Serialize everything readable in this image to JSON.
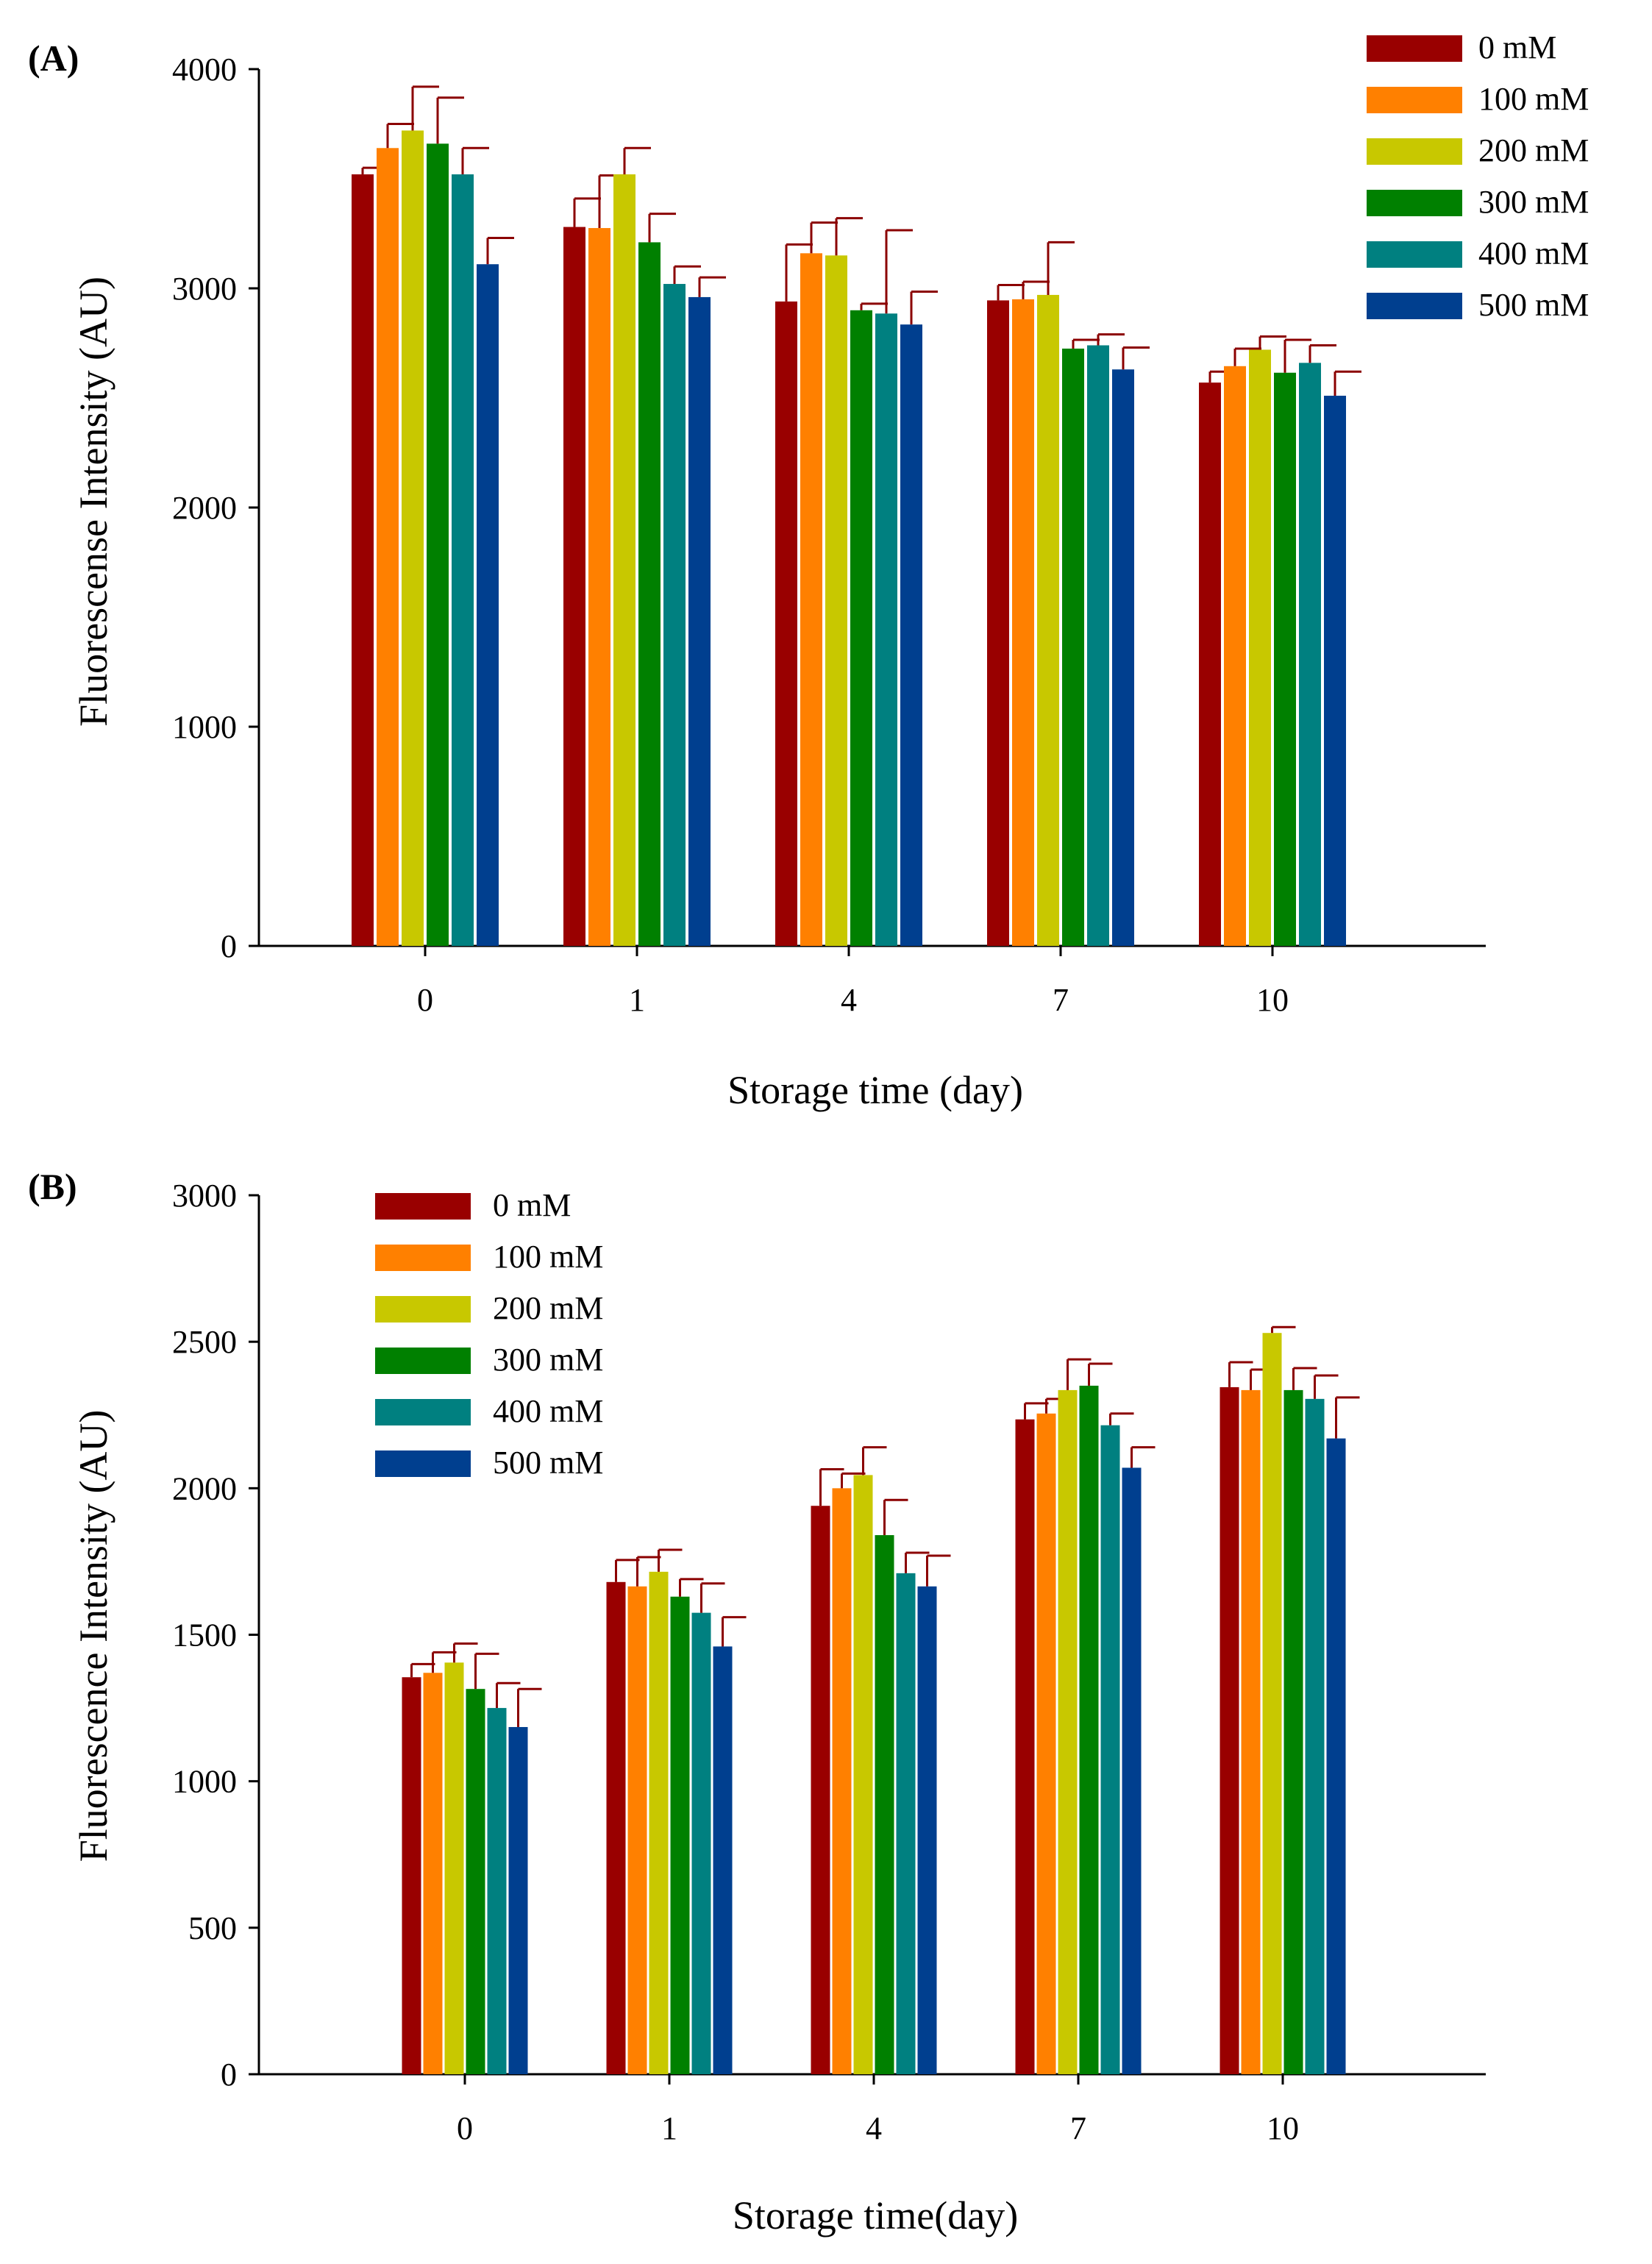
{
  "chart_data": [
    {
      "panel_label": "(A)",
      "type": "bar",
      "xlabel": "Storage time (day)",
      "ylabel": "Fluorescense Intensity (AU)",
      "ylim": [
        0,
        4000
      ],
      "yticks": [
        0,
        1000,
        2000,
        3000,
        4000
      ],
      "categories": [
        "0",
        "1",
        "4",
        "7",
        "10"
      ],
      "legend_position": "top-right",
      "series": [
        {
          "name": "0 mM",
          "color": "#990000",
          "values": [
            3520,
            3280,
            2940,
            2945,
            2570
          ],
          "errors": [
            30,
            130,
            260,
            70,
            50
          ]
        },
        {
          "name": "100 mM",
          "color": "#FF8000",
          "values": [
            3640,
            3275,
            3160,
            2950,
            2645
          ],
          "errors": [
            110,
            240,
            140,
            80,
            80
          ]
        },
        {
          "name": "200 mM",
          "color": "#C8C800",
          "values": [
            3720,
            3520,
            3150,
            2970,
            2720
          ],
          "errors": [
            200,
            120,
            170,
            240,
            60
          ]
        },
        {
          "name": "300 mM",
          "color": "#008000",
          "values": [
            3660,
            3210,
            2900,
            2725,
            2615
          ],
          "errors": [
            210,
            130,
            30,
            40,
            150
          ]
        },
        {
          "name": "400 mM",
          "color": "#008080",
          "values": [
            3520,
            3020,
            2885,
            2740,
            2660
          ],
          "errors": [
            120,
            80,
            380,
            50,
            80
          ]
        },
        {
          "name": "500 mM",
          "color": "#003F8F",
          "values": [
            3110,
            2960,
            2835,
            2630,
            2510
          ],
          "errors": [
            120,
            90,
            150,
            100,
            110
          ]
        }
      ]
    },
    {
      "panel_label": "(B)",
      "type": "bar",
      "xlabel": "Storage time(day)",
      "ylabel": "Fluorescence Intensity (AU)",
      "ylim": [
        0,
        3000
      ],
      "yticks": [
        0,
        500,
        1000,
        1500,
        2000,
        2500,
        3000
      ],
      "categories": [
        "0",
        "1",
        "4",
        "7",
        "10"
      ],
      "legend_position": "top-left",
      "series": [
        {
          "name": "0 mM",
          "color": "#990000",
          "values": [
            1355,
            1680,
            1940,
            2235,
            2345
          ],
          "errors": [
            45,
            75,
            125,
            55,
            85
          ]
        },
        {
          "name": "100 mM",
          "color": "#FF8000",
          "values": [
            1370,
            1665,
            2000,
            2255,
            2335
          ],
          "errors": [
            70,
            100,
            50,
            50,
            70
          ]
        },
        {
          "name": "200 mM",
          "color": "#C8C800",
          "values": [
            1405,
            1715,
            2045,
            2335,
            2530
          ],
          "errors": [
            65,
            75,
            95,
            105,
            20
          ]
        },
        {
          "name": "300 mM",
          "color": "#008000",
          "values": [
            1315,
            1630,
            1840,
            2350,
            2335
          ],
          "errors": [
            120,
            60,
            120,
            75,
            75
          ]
        },
        {
          "name": "400 mM",
          "color": "#008080",
          "values": [
            1250,
            1575,
            1710,
            2215,
            2305
          ],
          "errors": [
            85,
            100,
            70,
            40,
            80
          ]
        },
        {
          "name": "500 mM",
          "color": "#003F8F",
          "values": [
            1185,
            1460,
            1665,
            2070,
            2170
          ],
          "errors": [
            130,
            100,
            105,
            70,
            140
          ]
        }
      ]
    }
  ]
}
